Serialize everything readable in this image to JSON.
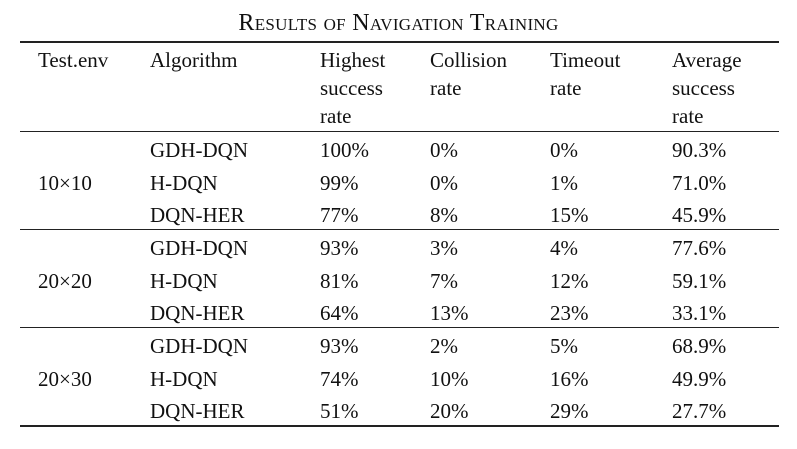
{
  "caption": "Results of Navigation Training",
  "headers": {
    "env": [
      "Test.env"
    ],
    "algorithm": [
      "Algorithm"
    ],
    "highest": [
      "Highest",
      "success",
      "rate"
    ],
    "collision": [
      "Collision",
      "rate"
    ],
    "timeout": [
      "Timeout",
      "rate"
    ],
    "average": [
      "Average",
      "success",
      "rate"
    ]
  },
  "groups": [
    {
      "env": "10×10",
      "rows": [
        {
          "algorithm": "GDH-DQN",
          "highest": "100%",
          "collision": "0%",
          "timeout": "0%",
          "average": "90.3%"
        },
        {
          "algorithm": "H-DQN",
          "highest": "99%",
          "collision": "0%",
          "timeout": "1%",
          "average": "71.0%"
        },
        {
          "algorithm": "DQN-HER",
          "highest": "77%",
          "collision": "8%",
          "timeout": "15%",
          "average": "45.9%"
        }
      ]
    },
    {
      "env": "20×20",
      "rows": [
        {
          "algorithm": "GDH-DQN",
          "highest": "93%",
          "collision": "3%",
          "timeout": "4%",
          "average": "77.6%"
        },
        {
          "algorithm": "H-DQN",
          "highest": "81%",
          "collision": "7%",
          "timeout": "12%",
          "average": "59.1%"
        },
        {
          "algorithm": "DQN-HER",
          "highest": "64%",
          "collision": "13%",
          "timeout": "23%",
          "average": "33.1%"
        }
      ]
    },
    {
      "env": "20×30",
      "rows": [
        {
          "algorithm": "GDH-DQN",
          "highest": "93%",
          "collision": "2%",
          "timeout": "5%",
          "average": "68.9%"
        },
        {
          "algorithm": "H-DQN",
          "highest": "74%",
          "collision": "10%",
          "timeout": "16%",
          "average": "49.9%"
        },
        {
          "algorithm": "DQN-HER",
          "highest": "51%",
          "collision": "20%",
          "timeout": "29%",
          "average": "27.7%"
        }
      ]
    }
  ]
}
